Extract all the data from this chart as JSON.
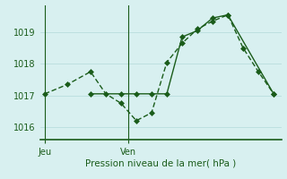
{
  "xlabel": "Pression niveau de la mer( hPa )",
  "yticks": [
    1016,
    1017,
    1018,
    1019
  ],
  "ylim": [
    1015.6,
    1019.85
  ],
  "xlim": [
    -0.3,
    15.5
  ],
  "background_color": "#d8f0f0",
  "grid_color": "#b8dede",
  "line_color": "#1a5c1a",
  "jeu_x": 0,
  "ven_x": 5.5,
  "line_dash_x": [
    0,
    1.5,
    3,
    4,
    5,
    6,
    7,
    8,
    9,
    10,
    11,
    12,
    13,
    14,
    15
  ],
  "line_dash_y": [
    1017.05,
    1017.35,
    1017.75,
    1017.05,
    1016.75,
    1016.2,
    1016.45,
    1018.05,
    1018.65,
    1019.1,
    1019.35,
    1019.55,
    1018.5,
    1017.75,
    1017.05
  ],
  "line_solid_x": [
    3,
    5,
    6,
    7,
    8,
    9,
    10,
    11,
    12,
    15
  ],
  "line_solid_y": [
    1017.05,
    1017.05,
    1017.05,
    1017.05,
    1017.05,
    1018.85,
    1019.05,
    1019.45,
    1019.55,
    1017.05
  ],
  "marker_size": 3.0,
  "linewidth": 1.0,
  "xlabel_fontsize": 7.5,
  "tick_labelsize": 7,
  "xtick_labelsize": 7
}
